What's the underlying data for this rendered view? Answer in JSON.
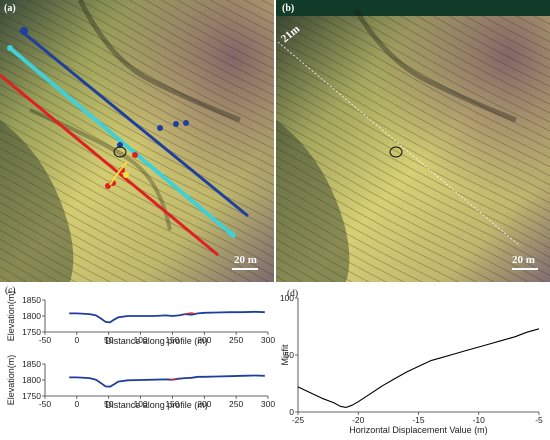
{
  "panels": {
    "a_label": "(a)",
    "b_label": "(b)",
    "a_scale": "20 m",
    "b_scale": "20 m",
    "b_offset_label": "21m",
    "c_label": "(c)",
    "d_label": "(d)"
  },
  "colors": {
    "profile_blue": "#1f3f9c",
    "profile_red": "#e02020",
    "profile_cyan": "#3fd0d8",
    "fault_trace": "#f5e03c",
    "terrain_low": "#c8c46a",
    "terrain_high": "#8c6a72"
  },
  "chart_data": [
    {
      "type": "line",
      "panel": "(c) top",
      "xlabel": "Distance along profile (m)",
      "ylabel": "Elevation(m)",
      "xlim": [
        -50,
        300
      ],
      "ylim": [
        1750,
        1850
      ],
      "xticks": [
        -50,
        0,
        50,
        100,
        150,
        200,
        250,
        300
      ],
      "yticks": [
        1750,
        1800,
        1850
      ],
      "grid": false,
      "series": [
        {
          "color": "#1f3f9c",
          "x": [
            -12,
            0,
            20,
            30,
            38,
            45,
            52,
            58,
            65,
            80,
            100,
            120,
            140,
            150,
            160,
            170,
            180,
            190,
            200,
            220,
            240,
            260,
            280,
            295
          ],
          "y": [
            1808,
            1808,
            1806,
            1802,
            1792,
            1782,
            1780,
            1788,
            1796,
            1800,
            1800,
            1800,
            1802,
            1800,
            1802,
            1806,
            1804,
            1808,
            1810,
            1811,
            1812,
            1812,
            1813,
            1812
          ]
        },
        {
          "color": "#e02020",
          "x": [
            168,
            174,
            180,
            186
          ],
          "y": [
            1805,
            1808,
            1810,
            1807
          ]
        }
      ]
    },
    {
      "type": "line",
      "panel": "(c) bottom",
      "xlabel": "Distance along profile (m)",
      "ylabel": "Elevation(m)",
      "xlim": [
        -50,
        300
      ],
      "ylim": [
        1750,
        1850
      ],
      "xticks": [
        -50,
        0,
        50,
        100,
        150,
        200,
        250,
        300
      ],
      "yticks": [
        1750,
        1800,
        1850
      ],
      "grid": false,
      "series": [
        {
          "color": "#1f3f9c",
          "x": [
            -12,
            0,
            20,
            30,
            38,
            45,
            52,
            58,
            65,
            80,
            100,
            120,
            140,
            150,
            160,
            170,
            180,
            190,
            200,
            220,
            240,
            260,
            280,
            295
          ],
          "y": [
            1808,
            1808,
            1806,
            1801,
            1790,
            1780,
            1779,
            1786,
            1795,
            1799,
            1800,
            1801,
            1802,
            1801,
            1804,
            1806,
            1807,
            1810,
            1810,
            1811,
            1812,
            1813,
            1814,
            1813
          ]
        },
        {
          "color": "#e02020",
          "x": [
            145,
            152,
            158
          ],
          "y": [
            1799,
            1802,
            1805
          ]
        }
      ]
    },
    {
      "type": "line",
      "panel": "(d)",
      "xlabel": "Horizontal Displacement Value (m)",
      "ylabel": "Misfit",
      "xlim": [
        -25,
        -5
      ],
      "ylim": [
        0,
        100
      ],
      "xticks": [
        -25,
        -20,
        -15,
        -10,
        -5
      ],
      "yticks": [
        0,
        50,
        100
      ],
      "grid": false,
      "series": [
        {
          "color": "#000000",
          "x": [
            -25,
            -24,
            -23,
            -22,
            -21.5,
            -21,
            -20.5,
            -20,
            -19,
            -18,
            -17,
            -16,
            -15,
            -14,
            -13,
            -12,
            -11,
            -10,
            -9,
            -8,
            -7,
            -6,
            -5
          ],
          "y": [
            22,
            17,
            12,
            8,
            5,
            4,
            6,
            9,
            16,
            23,
            29,
            35,
            40,
            45,
            48,
            51,
            54,
            57,
            60,
            63,
            66,
            70,
            73
          ]
        }
      ]
    }
  ]
}
